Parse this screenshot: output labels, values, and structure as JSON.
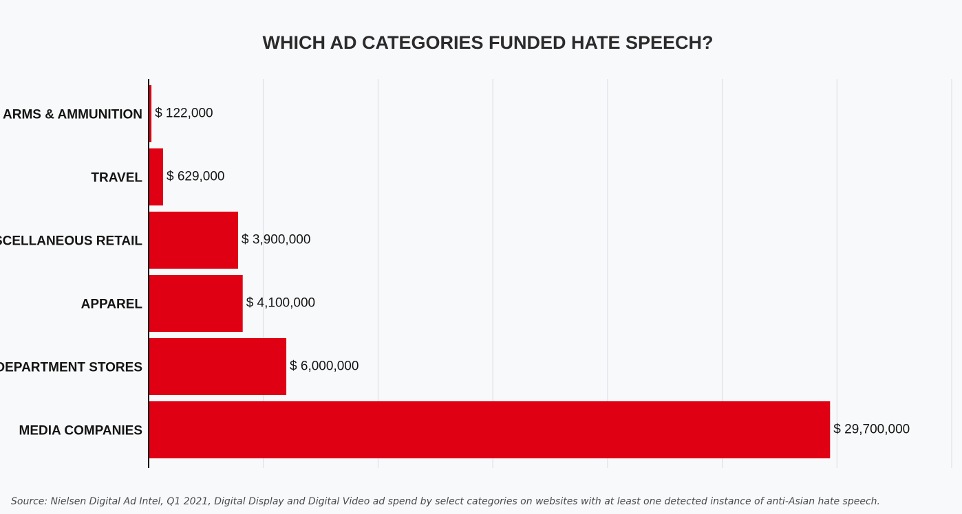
{
  "colors": {
    "bar": "#df0014",
    "background": "#f8f9fb"
  },
  "chart_data": {
    "type": "bar",
    "orientation": "horizontal",
    "title": "WHICH AD CATEGORIES FUNDED HATE SPEECH?",
    "categories": [
      "ARMS & AMMUNITION",
      "TRAVEL",
      "MISCELLANEOUS RETAIL",
      "APPAREL",
      "DEPARTMENT STORES",
      "MEDIA COMPANIES"
    ],
    "values": [
      122000,
      629000,
      3900000,
      4100000,
      6000000,
      29700000
    ],
    "value_labels": [
      "$ 122,000",
      "$ 629,000",
      "$ 3,900,000",
      "$ 4,100,000",
      "$ 6,000,000",
      "$ 29,700,000"
    ],
    "xlim": [
      0,
      35000000
    ],
    "x_gridline_step": 5000000,
    "grid": true,
    "legend": "none",
    "source": "Source: Nielsen Digital Ad Intel, Q1 2021, Digital Display and Digital Video ad spend by select categories on websites with at least one detected instance of anti-Asian hate speech."
  }
}
